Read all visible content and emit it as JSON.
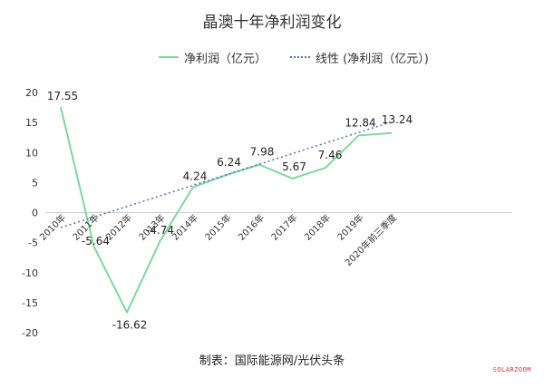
{
  "chart_data": {
    "type": "line",
    "title": "晶澳十年净利润变化",
    "categories": [
      "2010年",
      "2011年",
      "2012年",
      "2013年",
      "2014年",
      "2015年",
      "2016年",
      "2017年",
      "2018年",
      "2019年",
      "2020年前三季度"
    ],
    "series": [
      {
        "name": "净利润（亿元）",
        "values": [
          17.55,
          -5.64,
          -16.62,
          -4.74,
          4.24,
          6.24,
          7.98,
          5.67,
          7.46,
          12.84,
          13.24
        ],
        "color": "#7fd89b",
        "style": "solid"
      },
      {
        "name": "线性 (净利润（亿元）)",
        "values": [
          -2.5,
          -0.74,
          1.02,
          2.78,
          4.54,
          6.3,
          8.06,
          9.82,
          11.58,
          13.34,
          15.1
        ],
        "color": "#4a72c4",
        "style": "dotted"
      }
    ],
    "data_labels": [
      "17.55",
      "-5.64",
      "-16.62",
      "-4.74",
      "4.24",
      "6.24",
      "7.98",
      "5.67",
      "7.46",
      "12.84",
      "13.24"
    ],
    "y_ticks": [
      "20",
      "15",
      "10",
      "5",
      "0",
      "-5",
      "-10",
      "-15",
      "-20"
    ],
    "ylim": [
      -20,
      20
    ],
    "grid": false,
    "legend_position": "top"
  },
  "source": "制表：国际能源网/光伏头条",
  "watermark": "SOLARZOOM"
}
